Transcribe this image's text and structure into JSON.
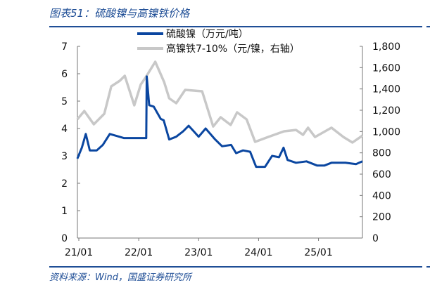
{
  "title": "图表51：硫酸镍与高镍铁价格",
  "source": "资料来源：Wind，国盛证券研究所",
  "chart_data": {
    "type": "line",
    "x_unit": "months since 21/01",
    "x_ticks": [
      {
        "m": 0,
        "label": "21/01"
      },
      {
        "m": 12,
        "label": "22/01"
      },
      {
        "m": 24,
        "label": "23/01"
      },
      {
        "m": 36,
        "label": "24/01"
      },
      {
        "m": 48,
        "label": "25/01"
      }
    ],
    "xlim": [
      0,
      56.8
    ],
    "y_left": {
      "ylim": [
        0,
        7
      ],
      "ticks": [
        "0",
        "1",
        "2",
        "3",
        "4",
        "5",
        "6",
        "7"
      ]
    },
    "y_right": {
      "ylim": [
        0,
        1800
      ],
      "ticks": [
        "0",
        "200",
        "400",
        "600",
        "800",
        "1,000",
        "1,200",
        "1,400",
        "1,600",
        "1,800"
      ]
    },
    "series": [
      {
        "name": "硫酸镍（万元/吨）",
        "axis": "left",
        "color": "#0a46a0",
        "x": [
          -0.3,
          0.6,
          1.4,
          2.2,
          3.6,
          4.8,
          6.2,
          8.1,
          9.0,
          11.1,
          13.5,
          13.6,
          14.1,
          15.0,
          16.4,
          17.0,
          18.1,
          19.5,
          20.9,
          22.0,
          23.0,
          24.0,
          25.4,
          27.3,
          28.7,
          30.5,
          31.5,
          32.9,
          34.3,
          35.5,
          37.3,
          38.7,
          40.1,
          41.0,
          41.8,
          43.5,
          45.6,
          47.7,
          49.2,
          50.6,
          53.4,
          55.5,
          56.8
        ],
        "y": [
          2.9,
          3.3,
          3.8,
          3.2,
          3.2,
          3.4,
          3.8,
          3.7,
          3.65,
          3.65,
          3.65,
          5.9,
          4.85,
          4.8,
          4.35,
          4.3,
          3.6,
          3.7,
          3.9,
          4.1,
          3.9,
          3.7,
          4.0,
          3.6,
          3.35,
          3.4,
          3.1,
          3.2,
          3.15,
          2.6,
          2.6,
          3.0,
          2.95,
          3.3,
          2.85,
          2.75,
          2.8,
          2.65,
          2.65,
          2.75,
          2.75,
          2.7,
          2.8
        ]
      },
      {
        "name": "高镍铁7-10%（元/镍，右轴）",
        "axis": "right",
        "color": "#c8c8c8",
        "x": [
          -0.3,
          1.1,
          3.0,
          5.1,
          6.5,
          8.2,
          9.2,
          11.1,
          12.4,
          13.4,
          15.3,
          17.1,
          18.1,
          19.5,
          21.3,
          24.7,
          26.9,
          28.4,
          30.4,
          31.7,
          33.6,
          35.3,
          37.9,
          41.1,
          43.5,
          44.9,
          45.9,
          47.3,
          50.6,
          53.0,
          54.8,
          56.8
        ],
        "y": [
          1115,
          1193,
          1068,
          1167,
          1424,
          1477,
          1523,
          1246,
          1441,
          1510,
          1655,
          1464,
          1312,
          1266,
          1391,
          1378,
          1048,
          1134,
          1062,
          1180,
          1114,
          903,
          949,
          1002,
          1015,
          969,
          1036,
          949,
          1036,
          949,
          897,
          962
        ]
      }
    ]
  }
}
